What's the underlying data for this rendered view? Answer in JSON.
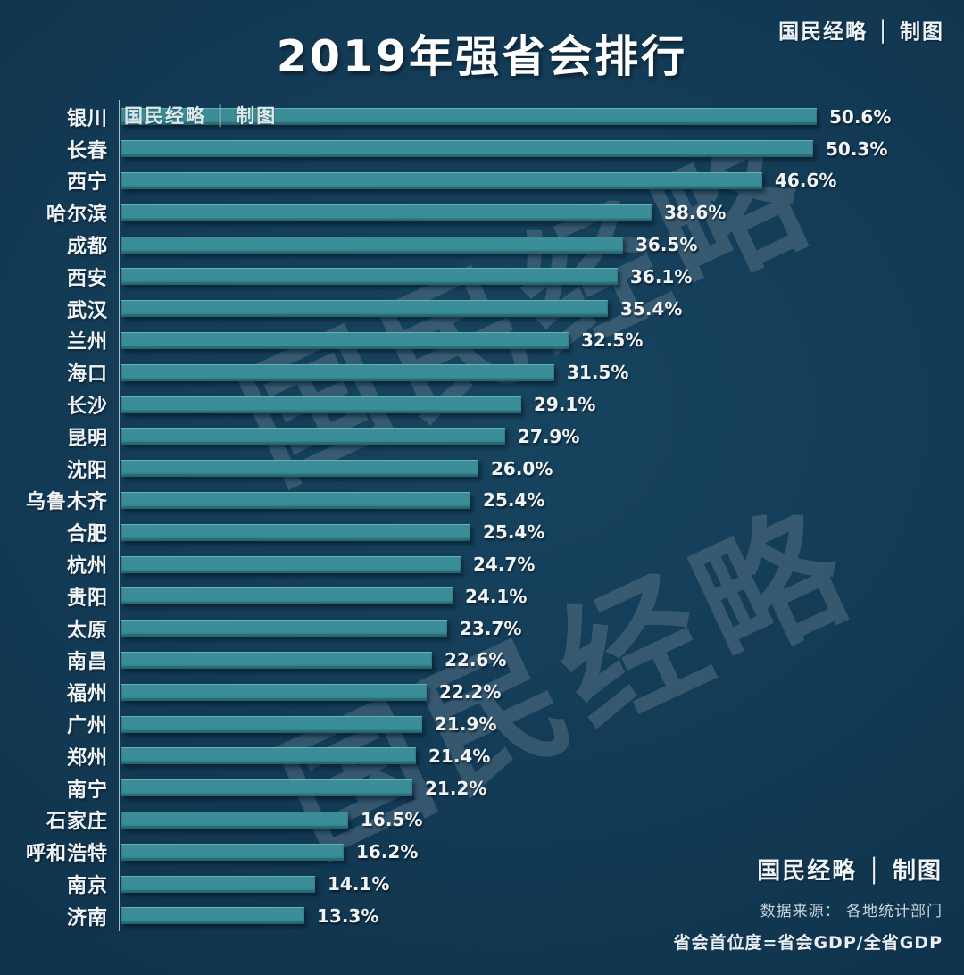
{
  "page": {
    "title": "2019年强省会排行",
    "brand_top_right": "国民经略 │ 制图",
    "brand_on_first_bar": "国民经略 │ 制图",
    "watermark_text": "国民经略",
    "footer": {
      "brand": "国民经略 │ 制图",
      "source": "数据来源：  各地统计部门",
      "formula": "省会首位度=省会GDP/全省GDP"
    },
    "colors": {
      "background": "#123a54",
      "bar": "#3b8e98",
      "axis_line": "#c6d2de",
      "text": "#ffffff"
    }
  },
  "chart_data": {
    "type": "bar",
    "orientation": "horizontal",
    "title": "2019年强省会排行",
    "xlabel": "",
    "ylabel": "",
    "xlim": [
      0,
      60
    ],
    "grid": false,
    "legend": false,
    "value_unit": "%",
    "categories": [
      "银川",
      "长春",
      "西宁",
      "哈尔滨",
      "成都",
      "西安",
      "武汉",
      "兰州",
      "海口",
      "长沙",
      "昆明",
      "沈阳",
      "乌鲁木齐",
      "合肥",
      "杭州",
      "贵阳",
      "太原",
      "南昌",
      "福州",
      "广州",
      "郑州",
      "南宁",
      "石家庄",
      "呼和浩特",
      "南京",
      "济南"
    ],
    "values": [
      50.6,
      50.3,
      46.6,
      38.6,
      36.5,
      36.1,
      35.4,
      32.5,
      31.5,
      29.1,
      27.9,
      26.0,
      25.4,
      25.4,
      24.7,
      24.1,
      23.7,
      22.6,
      22.2,
      21.9,
      21.4,
      21.2,
      16.5,
      16.2,
      14.1,
      13.3
    ],
    "value_labels": [
      "50.6%",
      "50.3%",
      "46.6%",
      "38.6%",
      "36.5%",
      "36.1%",
      "35.4%",
      "32.5%",
      "31.5%",
      "29.1%",
      "27.9%",
      "26.0%",
      "25.4%",
      "25.4%",
      "24.7%",
      "24.1%",
      "23.7%",
      "22.6%",
      "22.2%",
      "21.9%",
      "21.4%",
      "21.2%",
      "16.5%",
      "16.2%",
      "14.1%",
      "13.3%"
    ]
  }
}
